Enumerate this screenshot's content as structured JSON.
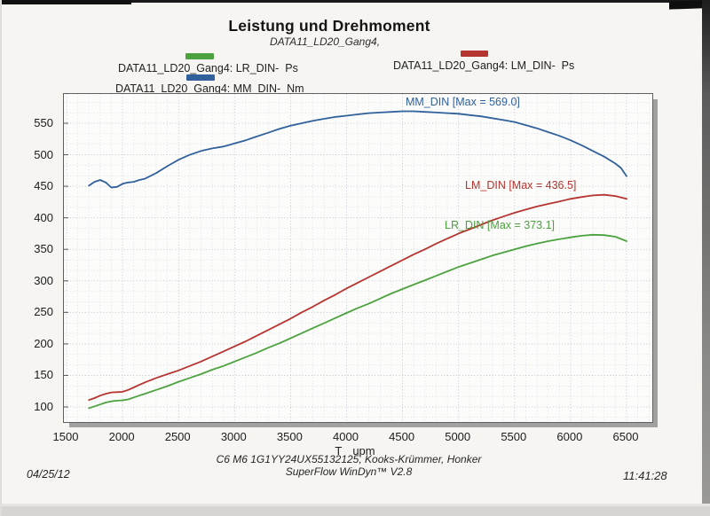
{
  "title": "Leistung und Drehmoment",
  "subtitle": "DATA11_LD20_Gang4,",
  "legend": {
    "items": [
      {
        "label": "DATA11_LD20_Gang4: LR_DIN-  Ps",
        "series": "LR_DIN",
        "unit": "Ps",
        "color": "#4ca23e"
      },
      {
        "label": "DATA11_LD20_Gang4: LM_DIN-  Ps",
        "series": "LM_DIN",
        "unit": "Ps",
        "color": "#b53531"
      },
      {
        "label": "DATA11_LD20_Gang4: MM_DIN-  Nm",
        "series": "MM_DIN",
        "unit": "Nm",
        "color": "#31619c"
      }
    ]
  },
  "annotations": [
    {
      "series": "MM_DIN",
      "label": "MM_DIN [Max = 569.0]",
      "max": 569.0,
      "color": "#31619c"
    },
    {
      "series": "LM_DIN",
      "label": "LM_DIN [Max = 436.5]",
      "max": 436.5,
      "color": "#b53531"
    },
    {
      "series": "LR_DIN",
      "label": "LR_DIN [Max = 373.1]",
      "max": 373.1,
      "color": "#4ca23e"
    }
  ],
  "axis": {
    "unit_prefix": "T",
    "unit": "upm"
  },
  "footer": {
    "date": "04/25/12",
    "time": "11:41:28",
    "line1": "C6 M6 1G1YY24UX55132125, Kooks-Krümmer, Honker",
    "line2": "SuperFlow WinDyn™ V2.8"
  },
  "chart_data": {
    "type": "line",
    "title": "Leistung und Drehmoment",
    "subtitle": "DATA11_LD20_Gang4,",
    "xlabel": "T upm",
    "ylabel": "",
    "xlim": [
      1500,
      6730
    ],
    "ylim": [
      76,
      596
    ],
    "grid": true,
    "legend_position": "top",
    "x_ticks": [
      1500,
      2000,
      2500,
      3000,
      3500,
      4000,
      4500,
      5000,
      5500,
      6000,
      6500
    ],
    "y_ticks": [
      100,
      150,
      200,
      250,
      300,
      350,
      400,
      450,
      500,
      550
    ],
    "series": [
      {
        "name": "DATA11_LD20_Gang4: MM_DIN- Nm",
        "short": "MM_DIN",
        "unit": "Nm",
        "color": "#31619c",
        "max": 569.0,
        "points": [
          [
            1700,
            451
          ],
          [
            1750,
            457
          ],
          [
            1800,
            460
          ],
          [
            1850,
            456
          ],
          [
            1900,
            448
          ],
          [
            1950,
            449
          ],
          [
            2000,
            454
          ],
          [
            2050,
            456
          ],
          [
            2100,
            457
          ],
          [
            2150,
            460
          ],
          [
            2200,
            462
          ],
          [
            2300,
            471
          ],
          [
            2400,
            482
          ],
          [
            2500,
            492
          ],
          [
            2600,
            500
          ],
          [
            2700,
            506
          ],
          [
            2800,
            510
          ],
          [
            2900,
            513
          ],
          [
            3000,
            518
          ],
          [
            3100,
            523
          ],
          [
            3200,
            529
          ],
          [
            3300,
            535
          ],
          [
            3400,
            541
          ],
          [
            3500,
            546
          ],
          [
            3600,
            550
          ],
          [
            3700,
            554
          ],
          [
            3800,
            557
          ],
          [
            3900,
            560
          ],
          [
            4000,
            562
          ],
          [
            4100,
            564
          ],
          [
            4200,
            566
          ],
          [
            4300,
            567
          ],
          [
            4400,
            568
          ],
          [
            4500,
            569
          ],
          [
            4600,
            569
          ],
          [
            4700,
            568
          ],
          [
            4800,
            567
          ],
          [
            4900,
            566
          ],
          [
            5000,
            565
          ],
          [
            5100,
            563
          ],
          [
            5200,
            561
          ],
          [
            5300,
            558
          ],
          [
            5400,
            555
          ],
          [
            5500,
            552
          ],
          [
            5600,
            547
          ],
          [
            5700,
            542
          ],
          [
            5800,
            536
          ],
          [
            5900,
            530
          ],
          [
            6000,
            523
          ],
          [
            6100,
            515
          ],
          [
            6200,
            506
          ],
          [
            6300,
            497
          ],
          [
            6400,
            486
          ],
          [
            6450,
            479
          ],
          [
            6500,
            466
          ]
        ]
      },
      {
        "name": "DATA11_LD20_Gang4: LM_DIN- Ps",
        "short": "LM_DIN",
        "unit": "Ps",
        "color": "#b53531",
        "max": 436.5,
        "points": [
          [
            1700,
            111
          ],
          [
            1750,
            114
          ],
          [
            1800,
            118
          ],
          [
            1850,
            121
          ],
          [
            1900,
            123
          ],
          [
            1950,
            123.5
          ],
          [
            2000,
            124
          ],
          [
            2050,
            127
          ],
          [
            2100,
            131
          ],
          [
            2150,
            135
          ],
          [
            2200,
            139
          ],
          [
            2300,
            146
          ],
          [
            2400,
            152
          ],
          [
            2500,
            158
          ],
          [
            2600,
            165
          ],
          [
            2700,
            172
          ],
          [
            2800,
            180
          ],
          [
            2900,
            188
          ],
          [
            3000,
            196
          ],
          [
            3100,
            204
          ],
          [
            3200,
            213
          ],
          [
            3300,
            222
          ],
          [
            3400,
            231
          ],
          [
            3500,
            240
          ],
          [
            3600,
            250
          ],
          [
            3700,
            259
          ],
          [
            3800,
            269
          ],
          [
            3900,
            278
          ],
          [
            4000,
            288
          ],
          [
            4100,
            297
          ],
          [
            4200,
            306
          ],
          [
            4300,
            315
          ],
          [
            4400,
            324
          ],
          [
            4500,
            333
          ],
          [
            4600,
            342
          ],
          [
            4700,
            350
          ],
          [
            4800,
            359
          ],
          [
            4900,
            367
          ],
          [
            5000,
            375
          ],
          [
            5100,
            382
          ],
          [
            5200,
            389
          ],
          [
            5300,
            396
          ],
          [
            5400,
            402
          ],
          [
            5500,
            408
          ],
          [
            5600,
            413
          ],
          [
            5700,
            418
          ],
          [
            5800,
            422
          ],
          [
            5900,
            426
          ],
          [
            6000,
            430
          ],
          [
            6100,
            433
          ],
          [
            6200,
            435.5
          ],
          [
            6300,
            436.5
          ],
          [
            6400,
            434.5
          ],
          [
            6500,
            430
          ]
        ]
      },
      {
        "name": "DATA11_LD20_Gang4: LR_DIN- Ps",
        "short": "LR_DIN",
        "unit": "Ps",
        "color": "#4ca23e",
        "max": 373.1,
        "points": [
          [
            1700,
            98
          ],
          [
            1750,
            101
          ],
          [
            1800,
            104
          ],
          [
            1850,
            107
          ],
          [
            1900,
            109
          ],
          [
            1950,
            110
          ],
          [
            2000,
            110.5
          ],
          [
            2050,
            112
          ],
          [
            2100,
            115
          ],
          [
            2150,
            118
          ],
          [
            2200,
            121
          ],
          [
            2300,
            127
          ],
          [
            2400,
            133
          ],
          [
            2500,
            140
          ],
          [
            2600,
            146
          ],
          [
            2700,
            152
          ],
          [
            2800,
            159
          ],
          [
            2900,
            165
          ],
          [
            3000,
            172
          ],
          [
            3100,
            179
          ],
          [
            3200,
            186
          ],
          [
            3300,
            194
          ],
          [
            3400,
            201
          ],
          [
            3500,
            209
          ],
          [
            3600,
            217
          ],
          [
            3700,
            225
          ],
          [
            3800,
            233
          ],
          [
            3900,
            241
          ],
          [
            4000,
            249
          ],
          [
            4100,
            257
          ],
          [
            4200,
            264
          ],
          [
            4300,
            272
          ],
          [
            4400,
            280
          ],
          [
            4500,
            287
          ],
          [
            4600,
            294
          ],
          [
            4700,
            301
          ],
          [
            4800,
            308
          ],
          [
            4900,
            315
          ],
          [
            5000,
            322
          ],
          [
            5100,
            328
          ],
          [
            5200,
            334
          ],
          [
            5300,
            340
          ],
          [
            5400,
            345
          ],
          [
            5500,
            350
          ],
          [
            5600,
            355
          ],
          [
            5700,
            359
          ],
          [
            5800,
            363
          ],
          [
            5900,
            366
          ],
          [
            6000,
            369
          ],
          [
            6100,
            371.5
          ],
          [
            6200,
            373.1
          ],
          [
            6300,
            372.5
          ],
          [
            6400,
            370
          ],
          [
            6500,
            363
          ]
        ]
      }
    ]
  }
}
